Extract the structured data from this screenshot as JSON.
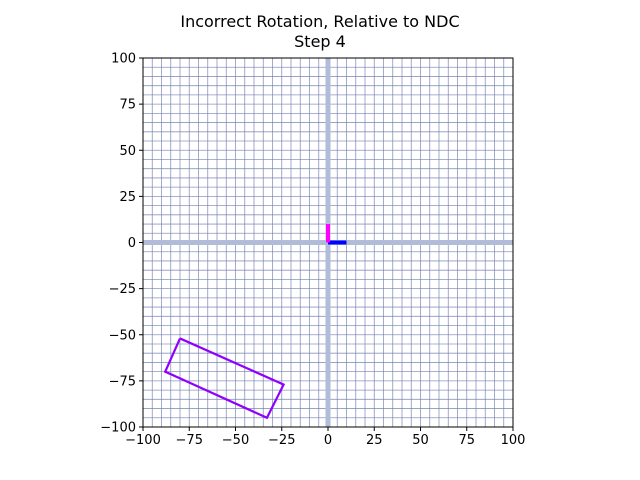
{
  "chart_data": {
    "type": "line",
    "title": "Incorrect Rotation, Relative to NDC",
    "subtitle": "Step 4",
    "xlabel": "",
    "ylabel": "",
    "xlim": [
      -100,
      100
    ],
    "ylim": [
      -100,
      100
    ],
    "xticks": [
      -100,
      -75,
      -50,
      -25,
      0,
      25,
      50,
      75,
      100
    ],
    "yticks": [
      -100,
      -75,
      -50,
      -25,
      0,
      25,
      50,
      75,
      100
    ],
    "xtick_labels": [
      "−100",
      "−75",
      "−50",
      "−25",
      "0",
      "25",
      "50",
      "75",
      "100"
    ],
    "ytick_labels": [
      "−100",
      "−75",
      "−50",
      "−25",
      "0",
      "25",
      "50",
      "75",
      "100"
    ],
    "grid": true,
    "grid_step": 5,
    "series": [
      {
        "kind": "rectangle",
        "color": "#8f00ff",
        "points": [
          [
            -80,
            -52
          ],
          [
            -24,
            -77
          ],
          [
            -33,
            -95
          ],
          [
            -88,
            -70
          ],
          [
            -80,
            -52
          ]
        ]
      },
      {
        "kind": "x-axis-arrow",
        "color": "#0000ff",
        "points": [
          [
            0,
            0
          ],
          [
            10,
            0
          ]
        ]
      },
      {
        "kind": "y-axis-arrow",
        "color": "#ff00ff",
        "points": [
          [
            0,
            0
          ],
          [
            0,
            10
          ]
        ]
      }
    ],
    "axis_lines": {
      "color": "#b0bcd8"
    },
    "grid_color": "#7784b4"
  }
}
